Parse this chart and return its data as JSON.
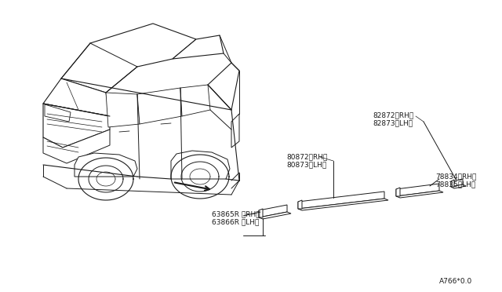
{
  "bg_color": "#ffffff",
  "line_color": "#1a1a1a",
  "text_color": "#1a1a1a",
  "title_ref": "A766*0.0",
  "label_tr1": "82872〈RH〉",
  "label_tr2": "82873〈LH〉",
  "label_mr1": "80872〈RH〉",
  "label_mr2": "80873〈LH〉",
  "label_br1": "78834〈RH〉",
  "label_br2": "78835〈LH〉",
  "label_bl1": "63865R 〈RH〉",
  "label_bl2": "63866R 〈LH〉",
  "font_size": 6.5,
  "ref_font_size": 6.5
}
